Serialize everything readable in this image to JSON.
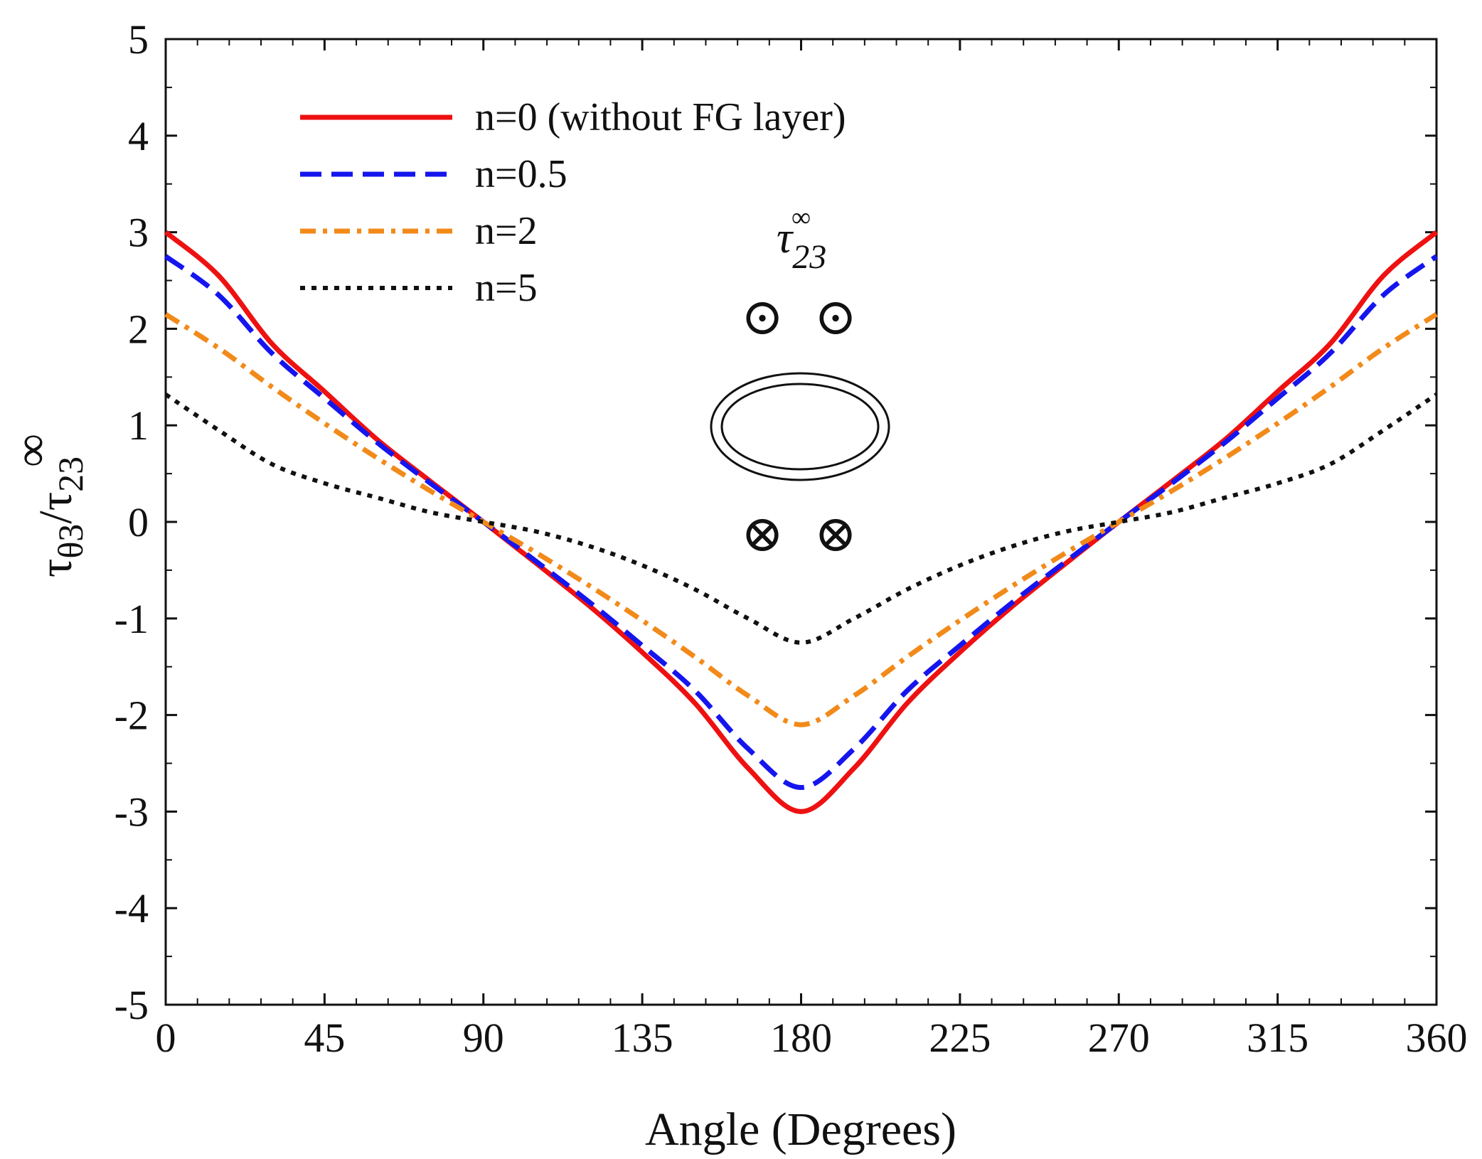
{
  "chart_data": {
    "type": "line",
    "xlabel": "Angle (Degrees)",
    "ylabel": {
      "numerator": "τ",
      "numerator_sub": "θ3",
      "slash": "/",
      "denominator": "τ",
      "denominator_sub": "23",
      "denominator_sup": "∞"
    },
    "xlim": [
      0,
      360
    ],
    "ylim": [
      -5,
      5
    ],
    "xticks": [
      0,
      45,
      90,
      135,
      180,
      225,
      270,
      315,
      360
    ],
    "yticks": [
      -5,
      -4,
      -3,
      -2,
      -1,
      0,
      1,
      2,
      3,
      4,
      5
    ],
    "grid": false,
    "legend_position": "top-left",
    "series": [
      {
        "name": "n=0 (without FG layer)",
        "color": "#ee1111",
        "style": "solid",
        "amplitude": 3.0
      },
      {
        "name": "n=0.5",
        "color": "#1515ee",
        "style": "dashed",
        "amplitude": 2.75
      },
      {
        "name": "n=2",
        "color": "#f28a1a",
        "style": "dashdot",
        "amplitude": 2.15
      },
      {
        "name": "n=5",
        "color": "#111111",
        "style": "dotted",
        "amplitude": 1.3
      }
    ],
    "x": [
      0,
      15,
      30,
      45,
      60,
      75,
      90,
      105,
      120,
      135,
      150,
      165,
      180,
      195,
      210,
      225,
      240,
      255,
      270,
      285,
      300,
      315,
      330,
      345,
      360
    ],
    "series_values": {
      "n=0 (without FG layer)": [
        3.0,
        2.55,
        1.85,
        1.35,
        0.85,
        0.42,
        0.0,
        -0.43,
        -0.87,
        -1.35,
        -1.88,
        -2.55,
        -3.0,
        -2.55,
        -1.88,
        -1.35,
        -0.87,
        -0.43,
        0.0,
        0.42,
        0.85,
        1.35,
        1.85,
        2.55,
        3.0
      ],
      "n=0.5": [
        2.75,
        2.35,
        1.75,
        1.28,
        0.82,
        0.4,
        0.0,
        -0.41,
        -0.83,
        -1.28,
        -1.75,
        -2.35,
        -2.75,
        -2.35,
        -1.75,
        -1.28,
        -0.83,
        -0.41,
        0.0,
        0.4,
        0.82,
        1.28,
        1.75,
        2.35,
        2.75
      ],
      "n=2": [
        2.15,
        1.8,
        1.4,
        1.02,
        0.66,
        0.32,
        0.0,
        -0.32,
        -0.66,
        -1.02,
        -1.4,
        -1.8,
        -2.1,
        -1.8,
        -1.4,
        -1.02,
        -0.66,
        -0.32,
        0.0,
        0.32,
        0.66,
        1.02,
        1.4,
        1.8,
        2.15
      ],
      "n=5": [
        1.32,
        0.95,
        0.6,
        0.4,
        0.25,
        0.1,
        0.0,
        -0.1,
        -0.25,
        -0.45,
        -0.7,
        -1.0,
        -1.25,
        -1.0,
        -0.7,
        -0.45,
        -0.25,
        -0.1,
        0.0,
        0.1,
        0.25,
        0.4,
        0.6,
        0.95,
        1.32
      ]
    }
  },
  "inset": {
    "label": "τ",
    "label_sub": "23",
    "label_sup": "∞",
    "top_symbol": "⊙",
    "bottom_symbol": "⊗"
  }
}
